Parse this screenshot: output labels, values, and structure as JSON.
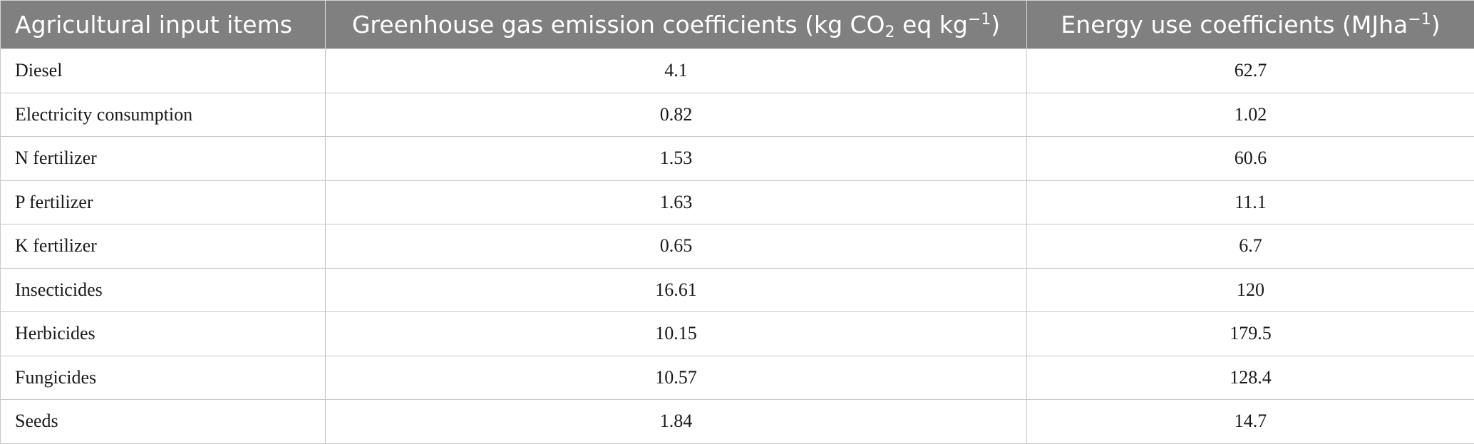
{
  "table": {
    "headers": {
      "item": "Agricultural input items",
      "ghg_prefix": "Greenhouse gas emission coefficients (kg CO",
      "ghg_sub": "2",
      "ghg_mid": " eq kg",
      "ghg_sup": "−1",
      "ghg_suffix": ")",
      "energy_prefix": "Energy use coefficients (MJha",
      "energy_sup": "−1",
      "energy_suffix": ")"
    },
    "rows": [
      {
        "item": "Diesel",
        "ghg": "4.1",
        "energy": "62.7"
      },
      {
        "item": "Electricity consumption",
        "ghg": "0.82",
        "energy": "1.02"
      },
      {
        "item": "N fertilizer",
        "ghg": "1.53",
        "energy": "60.6"
      },
      {
        "item": "P fertilizer",
        "ghg": "1.63",
        "energy": "11.1"
      },
      {
        "item": "K fertilizer",
        "ghg": "0.65",
        "energy": "6.7"
      },
      {
        "item": "Insecticides",
        "ghg": "16.61",
        "energy": "120"
      },
      {
        "item": "Herbicides",
        "ghg": "10.15",
        "energy": "179.5"
      },
      {
        "item": "Fungicides",
        "ghg": "10.57",
        "energy": "128.4"
      },
      {
        "item": "Seeds",
        "ghg": "1.84",
        "energy": "14.7"
      }
    ]
  }
}
